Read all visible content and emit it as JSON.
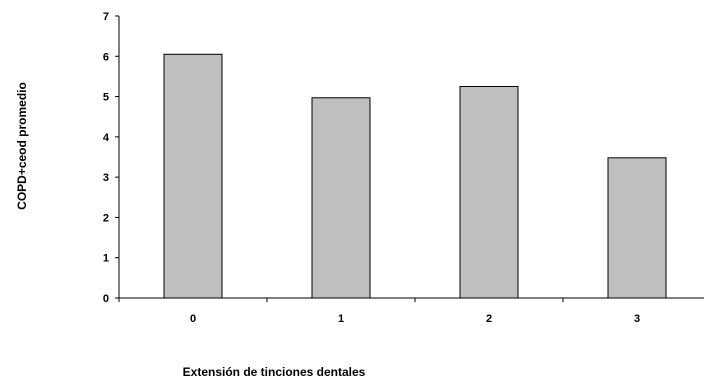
{
  "chart_data": {
    "type": "bar",
    "title": "",
    "xlabel": "Extensión de tinciones dentales",
    "ylabel": "COPD+ceod promedio",
    "categories": [
      "0",
      "1",
      "2",
      "3"
    ],
    "values": [
      6.05,
      4.97,
      5.25,
      3.48
    ],
    "ylim": [
      0,
      7
    ],
    "yticks": [
      0,
      1,
      2,
      3,
      4,
      5,
      6,
      7
    ],
    "bar_color": "#c0c0c0",
    "bar_edge_color": "#000000",
    "grid": false,
    "legend": "none"
  }
}
